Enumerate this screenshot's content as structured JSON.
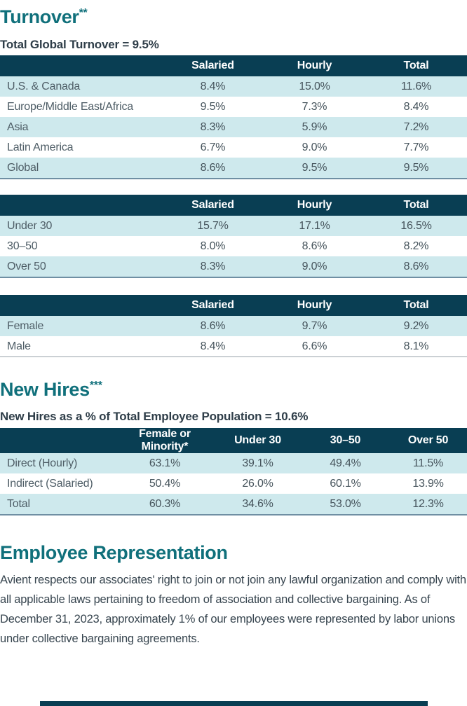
{
  "colors": {
    "heading_teal": "#10707B",
    "table_header_bg": "#093E53",
    "row_stripe": "#CEE9ED",
    "value_text": "#45535B",
    "subheading_text": "#2F3E49"
  },
  "turnover": {
    "heading": "Turnover",
    "heading_sup": "**",
    "subheading": "Total Global Turnover = 9.5%",
    "table_region": {
      "columns": [
        "",
        "Salaried",
        "Hourly",
        "Total"
      ],
      "rows": [
        {
          "label": "U.S. & Canada",
          "values": [
            "8.4%",
            "15.0%",
            "11.6%"
          ]
        },
        {
          "label": "Europe/Middle East/Africa",
          "values": [
            "9.5%",
            "7.3%",
            "8.4%"
          ]
        },
        {
          "label": "Asia",
          "values": [
            "8.3%",
            "5.9%",
            "7.2%"
          ]
        },
        {
          "label": "Latin America",
          "values": [
            "6.7%",
            "9.0%",
            "7.7%"
          ]
        },
        {
          "label": "Global",
          "values": [
            "8.6%",
            "9.5%",
            "9.5%"
          ]
        }
      ]
    },
    "table_age": {
      "columns": [
        "",
        "Salaried",
        "Hourly",
        "Total"
      ],
      "rows": [
        {
          "label": "Under 30",
          "values": [
            "15.7%",
            "17.1%",
            "16.5%"
          ]
        },
        {
          "label": "30–50",
          "values": [
            "8.0%",
            "8.6%",
            "8.2%"
          ]
        },
        {
          "label": "Over 50",
          "values": [
            "8.3%",
            "9.0%",
            "8.6%"
          ]
        }
      ]
    },
    "table_gender": {
      "columns": [
        "",
        "Salaried",
        "Hourly",
        "Total"
      ],
      "rows": [
        {
          "label": "Female",
          "values": [
            "8.6%",
            "9.7%",
            "9.2%"
          ]
        },
        {
          "label": "Male",
          "values": [
            "8.4%",
            "6.6%",
            "8.1%"
          ]
        }
      ]
    }
  },
  "new_hires": {
    "heading": "New Hires",
    "heading_sup": "***",
    "subheading": "New Hires as a % of Total Employee Population = 10.6%",
    "table": {
      "columns": [
        "",
        "Female or Minority*",
        "Under 30",
        "30–50",
        "Over 50"
      ],
      "rows": [
        {
          "label": "Direct (Hourly)",
          "values": [
            "63.1%",
            "39.1%",
            "49.4%",
            "11.5%"
          ]
        },
        {
          "label": "Indirect (Salaried)",
          "values": [
            "50.4%",
            "26.0%",
            "60.1%",
            "13.9%"
          ]
        },
        {
          "label": "Total",
          "values": [
            "60.3%",
            "34.6%",
            "53.0%",
            "12.3%"
          ]
        }
      ]
    }
  },
  "employee_representation": {
    "heading": "Employee Representation",
    "paragraph": "Avient respects our associates' right to join or not join any lawful organization and comply with all applicable laws pertaining to freedom of association and collective bargaining. As of December 31, 2023, approximately 1% of our employees were represented by labor unions under collective bargaining agreements."
  }
}
